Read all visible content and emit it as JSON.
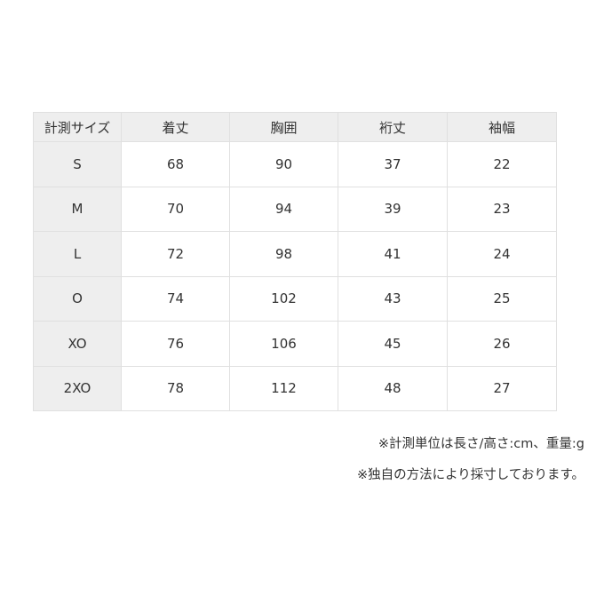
{
  "table": {
    "headers": [
      "計測サイズ",
      "着丈",
      "胸囲",
      "裄丈",
      "袖幅"
    ],
    "rows": [
      [
        "S",
        "68",
        "90",
        "37",
        "22"
      ],
      [
        "M",
        "70",
        "94",
        "39",
        "23"
      ],
      [
        "L",
        "72",
        "98",
        "41",
        "24"
      ],
      [
        "O",
        "74",
        "102",
        "43",
        "25"
      ],
      [
        "XO",
        "76",
        "106",
        "45",
        "26"
      ],
      [
        "2XO",
        "78",
        "112",
        "48",
        "27"
      ]
    ]
  },
  "notes": [
    "※計測単位は長さ/高さ:cm、重量:g",
    "※独自の方法により採寸しております。"
  ]
}
